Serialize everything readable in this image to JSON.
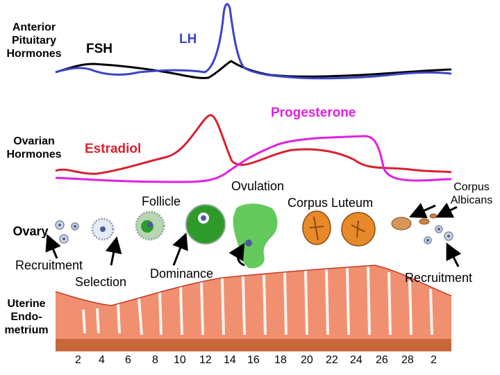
{
  "row_labels": {
    "pituitary": [
      "Anterior",
      "Pituitary",
      "Hormones"
    ],
    "ovarian": [
      "Ovarian",
      "Hormones"
    ],
    "ovary": "Ovary",
    "endometrium": [
      "Uterine",
      "Endo-",
      "metrium"
    ]
  },
  "hormones": {
    "fsh": "FSH",
    "lh": "LH",
    "progesterone": "Progesterone",
    "estradiol": "Estradiol"
  },
  "stages": {
    "follicle": "Follicle",
    "ovulation": "Ovulation",
    "corpus_luteum": "Corpus Luteum",
    "corpus_albicans": [
      "Corpus",
      "Albicans"
    ],
    "recruitment_left": "Recruitment",
    "selection": "Selection",
    "dominance": "Dominance",
    "recruitment_right": "Recruitment"
  },
  "day_axis": [
    "2",
    "4",
    "6",
    "8",
    "10",
    "12",
    "14",
    "16",
    "18",
    "20",
    "22",
    "24",
    "26",
    "28",
    "2"
  ],
  "colors": {
    "fsh": "#000000",
    "lh": "#3340c8",
    "progesterone": "#e020e0",
    "estradiol": "#d8202e",
    "follicle_green": "#2e9a2a",
    "corpus_orange": "#e88a2a",
    "endometrium": "#f09070"
  }
}
